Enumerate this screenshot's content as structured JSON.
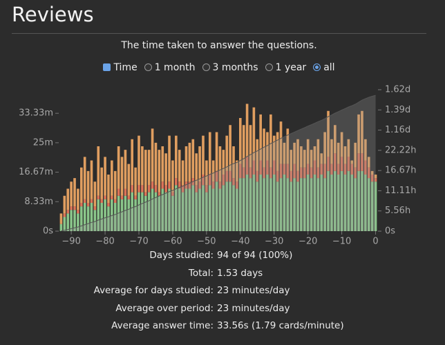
{
  "header": {
    "title": "Reviews"
  },
  "subtitle": "The time taken to answer the questions.",
  "controls": [
    {
      "label": "Time",
      "kind": "checkbox",
      "checked": true
    },
    {
      "label": "1 month",
      "kind": "radio",
      "checked": false
    },
    {
      "label": "3 months",
      "kind": "radio",
      "checked": false
    },
    {
      "label": "1 year",
      "kind": "radio",
      "checked": false
    },
    {
      "label": "all",
      "kind": "radio",
      "checked": true
    }
  ],
  "chart_data": {
    "type": "bar",
    "stacked": true,
    "cumulative_area": true,
    "area_color": "#9a9a9a",
    "x": [
      -93,
      -92,
      -91,
      -90,
      -89,
      -88,
      -87,
      -86,
      -85,
      -84,
      -83,
      -82,
      -81,
      -80,
      -79,
      -78,
      -77,
      -76,
      -75,
      -74,
      -73,
      -72,
      -71,
      -70,
      -69,
      -68,
      -67,
      -66,
      -65,
      -64,
      -63,
      -62,
      -61,
      -60,
      -59,
      -58,
      -57,
      -56,
      -55,
      -54,
      -53,
      -52,
      -51,
      -50,
      -49,
      -48,
      -47,
      -46,
      -45,
      -44,
      -43,
      -42,
      -41,
      -40,
      -39,
      -38,
      -37,
      -36,
      -35,
      -34,
      -33,
      -32,
      -31,
      -30,
      -29,
      -28,
      -27,
      -26,
      -25,
      -24,
      -23,
      -22,
      -21,
      -20,
      -19,
      -18,
      -17,
      -16,
      -15,
      -14,
      -13,
      -12,
      -11,
      -10,
      -9,
      -8,
      -7,
      -6,
      -5,
      -4,
      -3,
      -2,
      -1,
      0
    ],
    "xlim": [
      -93.5,
      0.5
    ],
    "xticks": [
      {
        "value": -90,
        "label": "−90"
      },
      {
        "value": -80,
        "label": "−80"
      },
      {
        "value": -70,
        "label": "−70"
      },
      {
        "value": -60,
        "label": "−60"
      },
      {
        "value": -50,
        "label": "−50"
      },
      {
        "value": -40,
        "label": "−40"
      },
      {
        "value": -30,
        "label": "−30"
      },
      {
        "value": -20,
        "label": "−20"
      },
      {
        "value": -10,
        "label": "−10"
      },
      0
    ],
    "ylim": [
      0,
      40
    ],
    "yticks": [
      {
        "value": 0,
        "label": "0s"
      },
      {
        "value": 8.33,
        "label": "8.33m"
      },
      {
        "value": 16.67,
        "label": "16.67m"
      },
      {
        "value": 25,
        "label": "25m"
      },
      {
        "value": 33.33,
        "label": "33.33m"
      }
    ],
    "y2lim": [
      0,
      38.89
    ],
    "y2ticks": [
      {
        "value": 0,
        "label": "0s"
      },
      {
        "value": 5.56,
        "label": "5.56h"
      },
      {
        "value": 11.11,
        "label": "11.11h"
      },
      {
        "value": 16.67,
        "label": "16.67h"
      },
      {
        "value": 22.22,
        "label": "22.22h"
      },
      {
        "value": 27.78,
        "label": "1.16d"
      },
      {
        "value": 33.33,
        "label": "1.39d"
      },
      {
        "value": 38.89,
        "label": "1.62d"
      }
    ],
    "series": [
      {
        "color": "#93d393",
        "values": [
          2,
          4,
          5,
          6,
          6,
          5,
          7,
          8,
          7,
          8,
          6,
          9,
          8,
          9,
          7,
          9,
          8,
          10,
          9,
          10,
          9,
          11,
          9,
          11,
          11,
          10,
          11,
          12,
          11,
          10,
          12,
          11,
          12,
          10,
          13,
          12,
          11,
          12,
          12,
          13,
          11,
          12,
          13,
          11,
          13,
          12,
          14,
          12,
          13,
          14,
          14,
          13,
          12,
          15,
          15,
          16,
          15,
          16,
          14,
          16,
          15,
          16,
          15,
          16,
          14,
          15,
          16,
          15,
          14,
          15,
          14,
          15,
          15,
          16,
          15,
          16,
          15,
          16,
          15,
          17,
          16,
          17,
          16,
          17,
          16,
          17,
          16,
          15,
          17,
          17,
          16,
          15,
          14,
          14
        ]
      },
      {
        "color": "#ec7a5c",
        "values": [
          0,
          1,
          1,
          1,
          1,
          1,
          1,
          1,
          1,
          1,
          1,
          1,
          1,
          1,
          1,
          1,
          1,
          2,
          1,
          2,
          1,
          2,
          1,
          2,
          2,
          1,
          2,
          2,
          2,
          1,
          2,
          2,
          2,
          1,
          2,
          2,
          2,
          2,
          2,
          2,
          2,
          2,
          3,
          2,
          3,
          2,
          3,
          2,
          3,
          3,
          3,
          2,
          2,
          4,
          3,
          5,
          3,
          4,
          3,
          4,
          3,
          4,
          3,
          4,
          3,
          4,
          3,
          4,
          3,
          4,
          3,
          3,
          3,
          3,
          3,
          4,
          3,
          3,
          4,
          4,
          3,
          5,
          3,
          4,
          3,
          4,
          3,
          3,
          5,
          5,
          4,
          3,
          2,
          1
        ]
      },
      {
        "color": "#f0a865",
        "values": [
          3,
          5,
          6,
          7,
          8,
          6,
          10,
          12,
          9,
          11,
          7,
          14,
          9,
          11,
          8,
          10,
          8,
          12,
          11,
          11,
          9,
          13,
          8,
          14,
          11,
          12,
          10,
          15,
          12,
          12,
          10,
          9,
          13,
          9,
          12,
          9,
          7,
          10,
          11,
          11,
          9,
          10,
          11,
          7,
          12,
          6,
          11,
          10,
          7,
          10,
          13,
          9,
          6,
          13,
          12,
          15,
          12,
          15,
          9,
          13,
          11,
          8,
          15,
          7,
          11,
          12,
          6,
          10,
          6,
          6,
          9,
          6,
          5,
          7,
          5,
          4,
          8,
          3,
          9,
          13,
          7,
          8,
          6,
          7,
          5,
          5,
          1,
          7,
          11,
          12,
          6,
          3,
          1,
          1
        ]
      }
    ]
  },
  "stats": [
    [
      "Days studied:",
      "94 of 94 (100%)"
    ],
    [
      "Total:",
      "1.53 days"
    ],
    [
      "Average for days studied:",
      "23 minutes/day"
    ],
    [
      "Average over period:",
      "23 minutes/day"
    ],
    [
      "Average answer time:",
      "33.56s (1.79 cards/minute)"
    ]
  ]
}
